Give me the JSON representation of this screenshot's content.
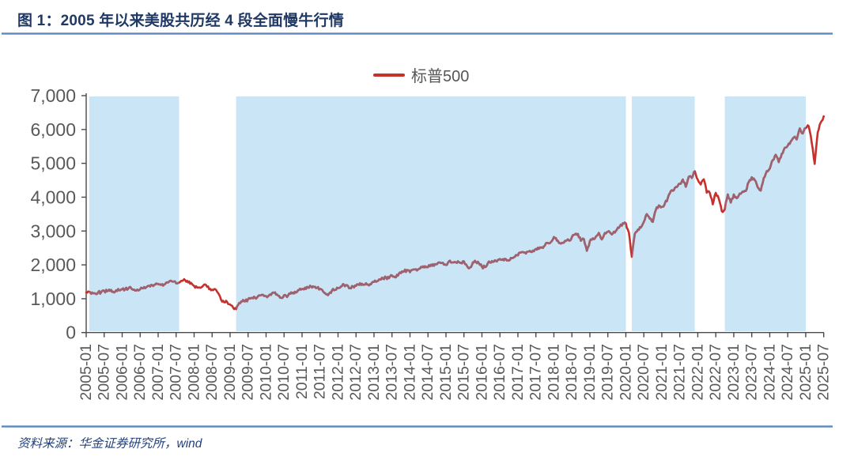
{
  "header": {
    "title": "图 1：2005 年以来美股共历经 4 段全面慢牛行情"
  },
  "legend": {
    "label": "标普500",
    "line_color": "#C5312D"
  },
  "footer": {
    "source": "资料来源：华金证券研究所，wind"
  },
  "colors": {
    "title_navy": "#1F3864",
    "divider_blue": "#5F87BF",
    "band_blue": "#C9E5F6",
    "line_red": "#C5312D",
    "line_red_under_band": "#9D6270",
    "axis_gray": "#4A4A4A",
    "tick_label_gray": "#595959"
  },
  "chart_data": {
    "type": "line",
    "title": "",
    "xlabel": "",
    "ylabel": "",
    "grid": false,
    "legend_position": "top-center",
    "x_range": [
      "2005-01",
      "2025-07"
    ],
    "ylim": [
      0,
      7000
    ],
    "x_tick_rotation": 90,
    "x_ticks": [
      "2005-01",
      "2005-07",
      "2006-01",
      "2006-07",
      "2007-01",
      "2007-07",
      "2008-01",
      "2008-07",
      "2009-01",
      "2009-07",
      "2010-01",
      "2010-07",
      "2011-01",
      "2011-07",
      "2012-01",
      "2012-07",
      "2013-01",
      "2013-07",
      "2014-01",
      "2014-07",
      "2015-01",
      "2015-07",
      "2016-01",
      "2016-07",
      "2017-01",
      "2017-07",
      "2018-01",
      "2018-07",
      "2019-01",
      "2019-07",
      "2020-01",
      "2020-07",
      "2021-01",
      "2021-07",
      "2022-01",
      "2022-07",
      "2023-01",
      "2023-07",
      "2024-01",
      "2024-07",
      "2025-01",
      "2025-07"
    ],
    "y_ticks": [
      {
        "value": 0,
        "label": "0"
      },
      {
        "value": 1000,
        "label": "1,000"
      },
      {
        "value": 2000,
        "label": "2,000"
      },
      {
        "value": 3000,
        "label": "3,000"
      },
      {
        "value": 4000,
        "label": "4,000"
      },
      {
        "value": 5000,
        "label": "5,000"
      },
      {
        "value": 6000,
        "label": "6,000"
      },
      {
        "value": 7000,
        "label": "7,000"
      }
    ],
    "bull_periods": {
      "color": "#C9E5F6",
      "ranges": [
        [
          "2005-02",
          "2007-08"
        ],
        [
          "2009-03",
          "2020-01"
        ],
        [
          "2020-03",
          "2021-12"
        ],
        [
          "2022-10",
          "2025-01"
        ]
      ]
    },
    "series": [
      {
        "name": "标普500",
        "color": "#C5312D",
        "color_under_band": "#9D6270",
        "start": "2005-01",
        "step_months": 1,
        "values": [
          1181,
          1204,
          1181,
          1157,
          1192,
          1191,
          1234,
          1220,
          1229,
          1207,
          1249,
          1248,
          1280,
          1281,
          1295,
          1311,
          1270,
          1270,
          1277,
          1304,
          1336,
          1378,
          1401,
          1418,
          1438,
          1407,
          1421,
          1482,
          1531,
          1503,
          1455,
          1474,
          1527,
          1549,
          1481,
          1468,
          1379,
          1331,
          1323,
          1386,
          1400,
          1280,
          1267,
          1283,
          1166,
          969,
          896,
          903,
          826,
          735,
          690,
          873,
          919,
          919,
          987,
          1021,
          1057,
          1036,
          1096,
          1115,
          1074,
          1104,
          1169,
          1187,
          1089,
          1031,
          1102,
          1049,
          1141,
          1183,
          1181,
          1258,
          1286,
          1327,
          1326,
          1364,
          1345,
          1321,
          1292,
          1219,
          1131,
          1150,
          1247,
          1258,
          1312,
          1366,
          1408,
          1398,
          1310,
          1362,
          1379,
          1407,
          1441,
          1412,
          1416,
          1426,
          1498,
          1515,
          1569,
          1598,
          1631,
          1606,
          1686,
          1633,
          1682,
          1757,
          1806,
          1848,
          1783,
          1859,
          1872,
          1884,
          1924,
          1960,
          1931,
          2003,
          1972,
          2018,
          2068,
          2059,
          1995,
          2105,
          2068,
          2086,
          2107,
          2063,
          2104,
          1972,
          1920,
          2079,
          2080,
          2044,
          1940,
          1932,
          2060,
          2065,
          2097,
          2099,
          2174,
          2171,
          2168,
          2126,
          2199,
          2239,
          2279,
          2364,
          2363,
          2384,
          2412,
          2423,
          2470,
          2472,
          2519,
          2575,
          2648,
          2674,
          2824,
          2714,
          2641,
          2648,
          2705,
          2718,
          2816,
          2902,
          2914,
          2712,
          2760,
          2416,
          2704,
          2784,
          2834,
          2946,
          2752,
          2942,
          2980,
          2926,
          2977,
          3038,
          3141,
          3231,
          3226,
          2954,
          2237,
          2912,
          3044,
          3100,
          3271,
          3500,
          3363,
          3270,
          3622,
          3756,
          3714,
          3811,
          3973,
          4181,
          4204,
          4298,
          4395,
          4523,
          4308,
          4605,
          4567,
          4766,
          4516,
          4374,
          4530,
          4132,
          4132,
          3785,
          4130,
          3955,
          3586,
          3640,
          4080,
          3840,
          4077,
          3970,
          4109,
          4169,
          4180,
          4450,
          4589,
          4508,
          4288,
          4194,
          4568,
          4770,
          4846,
          5096,
          5254,
          5036,
          5278,
          5460,
          5522,
          5648,
          5762,
          5705,
          6032,
          5882,
          6041,
          6100,
          5612,
          4983,
          5912,
          6205,
          6390
        ]
      }
    ]
  }
}
